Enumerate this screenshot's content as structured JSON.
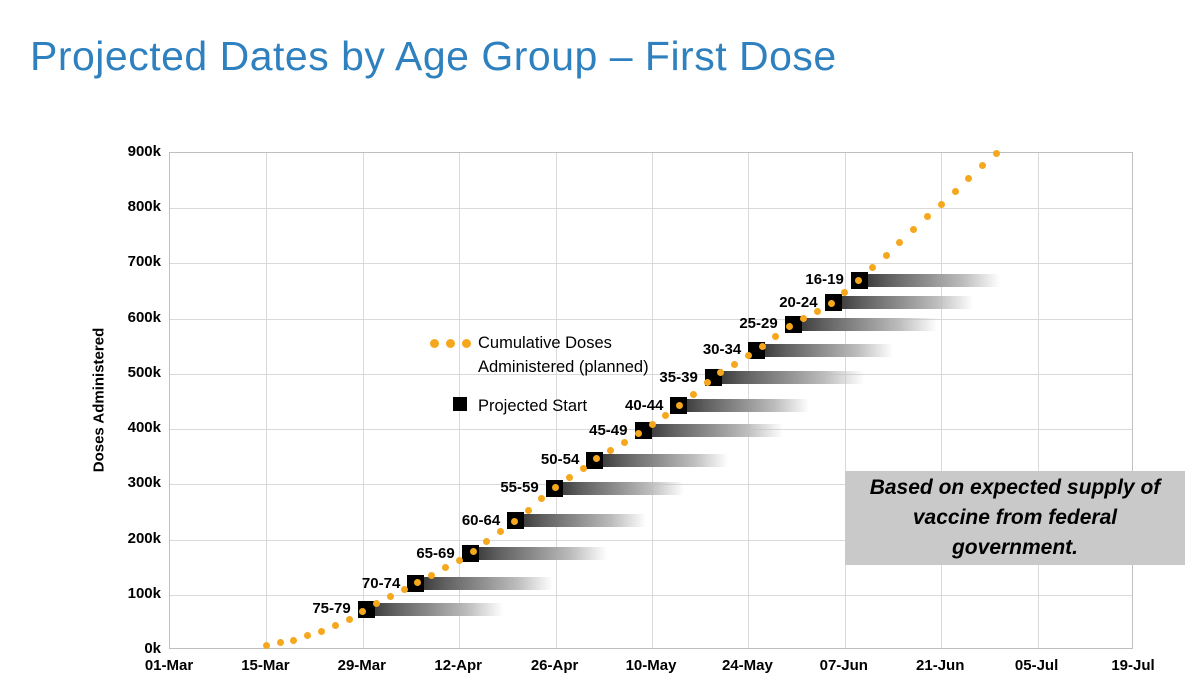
{
  "title": "Projected Dates by Age Group – First Dose",
  "legend": {
    "cumulative": "Cumulative Doses Administered (planned)",
    "projected": "Projected Start"
  },
  "callout": {
    "text": "Based on expected supply of vaccine from federal government."
  },
  "colors": {
    "title_blue": "#2E81BE",
    "curve_orange": "#F5A71D",
    "marker_black": "#000000",
    "grid": "#D9D9D9",
    "axis_border": "#BFBFBF",
    "callout_bg": "#C9C9C9"
  },
  "chart_data": {
    "type": "line",
    "title": "",
    "xlabel": "",
    "ylabel": "Doses Administered",
    "grid": true,
    "x_ticks": [
      "01-Mar",
      "15-Mar",
      "29-Mar",
      "12-Apr",
      "26-Apr",
      "10-May",
      "24-May",
      "07-Jun",
      "21-Jun",
      "05-Jul",
      "19-Jul"
    ],
    "x_tick_interval_days": 14,
    "x_range_days": [
      0,
      140
    ],
    "y_ticks": [
      "0k",
      "100k",
      "200k",
      "300k",
      "400k",
      "500k",
      "600k",
      "700k",
      "800k",
      "900k"
    ],
    "ylim_thousands": [
      0,
      900
    ],
    "legend_position": "top-left-inside",
    "series": [
      {
        "name": "Cumulative Doses Administered (planned)",
        "style": "dotted",
        "color": "#F5A71D",
        "dot_every_days": 2,
        "points_day_dosesK": [
          [
            14,
            8
          ],
          [
            18,
            18
          ],
          [
            22,
            33
          ],
          [
            25.5,
            52
          ],
          [
            28.5,
            74
          ],
          [
            35.7,
            120
          ],
          [
            43.6,
            174
          ],
          [
            50.2,
            234
          ],
          [
            55.8,
            293
          ],
          [
            61.7,
            344
          ],
          [
            68.7,
            397
          ],
          [
            73.9,
            442
          ],
          [
            78.9,
            493
          ],
          [
            85.2,
            543
          ],
          [
            90.5,
            590
          ],
          [
            96.3,
            629
          ],
          [
            100.1,
            670
          ],
          [
            120,
            900
          ]
        ]
      },
      {
        "name": "Projected Start",
        "style": "square-markers-with-fade-bars",
        "color": "#000000",
        "note": "one marker per age group, see age_groups"
      }
    ],
    "age_groups": [
      {
        "label": "75-79",
        "start_date": "29-Mar",
        "day": 28.5,
        "doses_k": 74,
        "bar_days": 19
      },
      {
        "label": "70-74",
        "start_date": "05-Apr",
        "day": 35.7,
        "doses_k": 120,
        "bar_days": 19
      },
      {
        "label": "65-69",
        "start_date": "13-Apr",
        "day": 43.6,
        "doses_k": 174,
        "bar_days": 19
      },
      {
        "label": "60-64",
        "start_date": "20-Apr",
        "day": 50.2,
        "doses_k": 234,
        "bar_days": 18
      },
      {
        "label": "55-59",
        "start_date": "26-Apr",
        "day": 55.8,
        "doses_k": 293,
        "bar_days": 18
      },
      {
        "label": "50-54",
        "start_date": "02-May",
        "day": 61.7,
        "doses_k": 344,
        "bar_days": 18.5
      },
      {
        "label": "45-49",
        "start_date": "09-May",
        "day": 68.7,
        "doses_k": 397,
        "bar_days": 19.5
      },
      {
        "label": "40-44",
        "start_date": "14-May",
        "day": 73.9,
        "doses_k": 442,
        "bar_days": 18
      },
      {
        "label": "35-39",
        "start_date": "19-May",
        "day": 78.9,
        "doses_k": 493,
        "bar_days": 21
      },
      {
        "label": "30-34",
        "start_date": "25-May",
        "day": 85.2,
        "doses_k": 543,
        "bar_days": 19
      },
      {
        "label": "25-29",
        "start_date": "31-May",
        "day": 90.5,
        "doses_k": 590,
        "bar_days": 20
      },
      {
        "label": "20-24",
        "start_date": "05-Jun",
        "day": 96.3,
        "doses_k": 629,
        "bar_days": 19.5
      },
      {
        "label": "16-19",
        "start_date": "09-Jun",
        "day": 100.1,
        "doses_k": 670,
        "bar_days": 19.5
      }
    ]
  }
}
